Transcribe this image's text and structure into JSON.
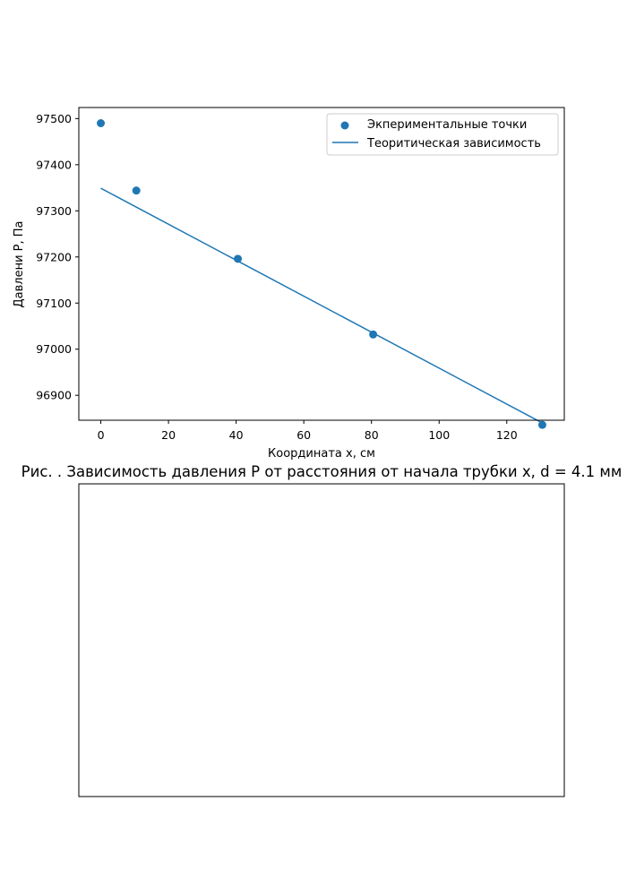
{
  "chart_data": [
    {
      "type": "scatter+line",
      "title": "",
      "caption": "Рис.  . Зависимость давления P от расстояния от начала трубки x, d = 4.1 мм",
      "xlabel": "Координата x, см",
      "ylabel": "Давлени P, Па",
      "xlim": [
        -6.5,
        137
      ],
      "ylim": [
        96846,
        97524
      ],
      "xticks": [
        0,
        20,
        40,
        60,
        80,
        100,
        120
      ],
      "yticks": [
        96900,
        97000,
        97100,
        97200,
        97300,
        97400,
        97500
      ],
      "grid": false,
      "legend_position": "upper right",
      "color": "#1f77b4",
      "series": [
        {
          "name": "Экпериментальные точки",
          "kind": "scatter",
          "x": [
            0,
            10.5,
            40.5,
            80.5,
            130.5
          ],
          "y": [
            97490,
            97344,
            97196,
            97032,
            96836
          ]
        },
        {
          "name": "Теоритическая зависимость",
          "kind": "line",
          "x": [
            0,
            130.5
          ],
          "y": [
            97349,
            96840
          ]
        }
      ]
    },
    {
      "type": "empty",
      "title": ""
    }
  ]
}
